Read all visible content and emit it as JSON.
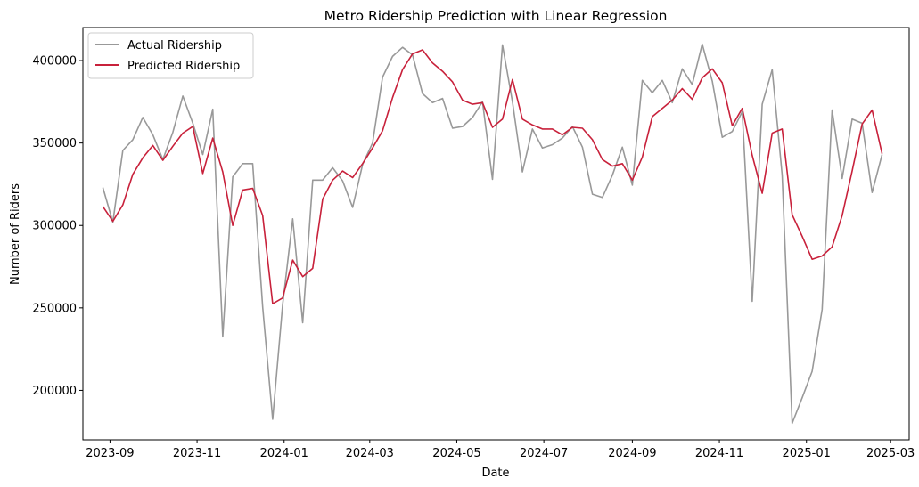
{
  "chart_data": {
    "type": "line",
    "title": "Metro Ridership Prediction with Linear Regression",
    "xlabel": "Date",
    "ylabel": "Number of Riders",
    "ylim": [
      170000,
      420000
    ],
    "xlim": [
      "2023-08-13",
      "2025-03-14"
    ],
    "x_ticks": [
      "2023-09",
      "2023-11",
      "2024-01",
      "2024-03",
      "2024-05",
      "2024-07",
      "2024-09",
      "2024-11",
      "2025-01",
      "2025-03"
    ],
    "y_ticks": [
      200000,
      250000,
      300000,
      350000,
      400000
    ],
    "grid": false,
    "legend_position": "upper left",
    "x": [
      "2023-08-27",
      "2023-09-03",
      "2023-09-10",
      "2023-09-17",
      "2023-09-24",
      "2023-10-01",
      "2023-10-08",
      "2023-10-15",
      "2023-10-22",
      "2023-10-29",
      "2023-11-05",
      "2023-11-12",
      "2023-11-19",
      "2023-11-26",
      "2023-12-03",
      "2023-12-10",
      "2023-12-17",
      "2023-12-24",
      "2023-12-31",
      "2024-01-07",
      "2024-01-14",
      "2024-01-21",
      "2024-01-28",
      "2024-02-04",
      "2024-02-11",
      "2024-02-18",
      "2024-02-25",
      "2024-03-03",
      "2024-03-10",
      "2024-03-17",
      "2024-03-24",
      "2024-03-31",
      "2024-04-07",
      "2024-04-14",
      "2024-04-21",
      "2024-04-28",
      "2024-05-05",
      "2024-05-12",
      "2024-05-19",
      "2024-05-26",
      "2024-06-02",
      "2024-06-09",
      "2024-06-16",
      "2024-06-23",
      "2024-06-30",
      "2024-07-07",
      "2024-07-14",
      "2024-07-21",
      "2024-07-28",
      "2024-08-04",
      "2024-08-11",
      "2024-08-18",
      "2024-08-25",
      "2024-09-01",
      "2024-09-08",
      "2024-09-15",
      "2024-09-22",
      "2024-09-29",
      "2024-10-06",
      "2024-10-13",
      "2024-10-20",
      "2024-10-27",
      "2024-11-03",
      "2024-11-10",
      "2024-11-17",
      "2024-11-24",
      "2024-12-01",
      "2024-12-08",
      "2024-12-15",
      "2024-12-22",
      "2024-12-29",
      "2025-01-05",
      "2025-01-12",
      "2025-01-19",
      "2025-01-26",
      "2025-02-02",
      "2025-02-09",
      "2025-02-16",
      "2025-02-23"
    ],
    "series": [
      {
        "name": "Actual Ridership",
        "color": "#999999",
        "values": [
          323000,
          302000,
          345500,
          352000,
          365500,
          355000,
          340000,
          356500,
          378500,
          362000,
          343000,
          370500,
          232500,
          329500,
          337500,
          337500,
          250500,
          182500,
          252000,
          304000,
          241000,
          327500,
          327500,
          335000,
          327000,
          311000,
          337000,
          350000,
          390000,
          402500,
          408000,
          403500,
          380000,
          374500,
          377000,
          359000,
          360000,
          365500,
          375000,
          328000,
          409500,
          375000,
          332500,
          358500,
          347000,
          349000,
          353000,
          360000,
          347500,
          319000,
          317000,
          330500,
          347500,
          324500,
          388000,
          380500,
          388000,
          374500,
          395000,
          385500,
          410000,
          387500,
          353500,
          357000,
          369000,
          254000,
          373500,
          394500,
          330500,
          180000,
          195500,
          211500,
          249000,
          370000,
          328500,
          364500,
          362000,
          320000,
          343000
        ]
      },
      {
        "name": "Predicted Ridership",
        "color": "#c8213b",
        "values": [
          311500,
          302500,
          312500,
          331000,
          341000,
          348500,
          339500,
          348000,
          356000,
          360000,
          331500,
          353000,
          332500,
          300000,
          321500,
          322500,
          306000,
          252500,
          256000,
          279000,
          269000,
          274000,
          316000,
          327500,
          333000,
          329000,
          337500,
          347000,
          357500,
          377500,
          394500,
          404000,
          406500,
          398500,
          393500,
          387000,
          376000,
          373500,
          374500,
          359500,
          364500,
          388500,
          364500,
          361000,
          358500,
          358500,
          355000,
          359500,
          359000,
          352000,
          340000,
          336000,
          337500,
          327500,
          341500,
          366000,
          371000,
          376000,
          383000,
          376500,
          389500,
          395000,
          386500,
          360500,
          371000,
          342500,
          319500,
          356000,
          358500,
          306500,
          293500,
          279500,
          281500,
          287000,
          306000,
          333000,
          361500,
          370000,
          343500
        ]
      }
    ]
  }
}
